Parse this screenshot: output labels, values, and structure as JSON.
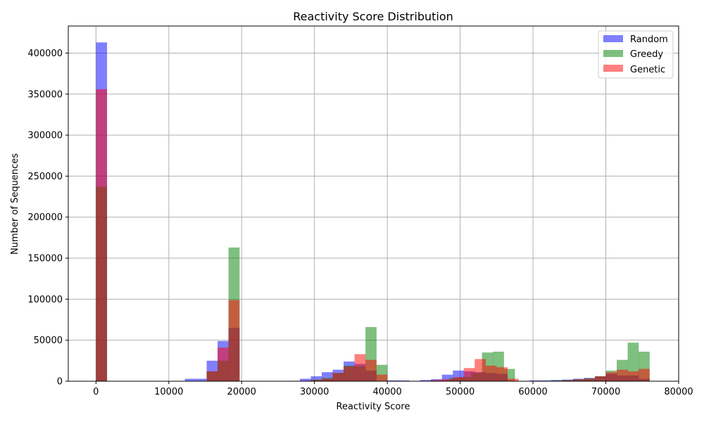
{
  "chart_data": {
    "type": "histogram",
    "title": "Reactivity Score Distribution",
    "xlabel": "Reactivity Score",
    "ylabel": "Number of Sequences",
    "xlim": [
      -3800,
      80000
    ],
    "ylim": [
      0,
      433000
    ],
    "xticks": [
      0,
      10000,
      20000,
      30000,
      40000,
      50000,
      60000,
      70000,
      80000
    ],
    "yticks": [
      0,
      50000,
      100000,
      150000,
      200000,
      250000,
      300000,
      350000,
      400000
    ],
    "grid": true,
    "legend_position": "top-right",
    "bin_width": 1520,
    "series": [
      {
        "name": "Random",
        "color": "#0000ff",
        "alpha": 0.5,
        "bins": [
          [
            0,
            413000
          ],
          [
            12200,
            3000
          ],
          [
            13700,
            3000
          ],
          [
            15200,
            25000
          ],
          [
            16700,
            49000
          ],
          [
            18200,
            65000
          ],
          [
            26500,
            500
          ],
          [
            28000,
            3000
          ],
          [
            29500,
            6000
          ],
          [
            31000,
            11000
          ],
          [
            32500,
            14000
          ],
          [
            34000,
            24000
          ],
          [
            35500,
            21000
          ],
          [
            37000,
            13000
          ],
          [
            40000,
            1000
          ],
          [
            41500,
            1000
          ],
          [
            44500,
            1500
          ],
          [
            46000,
            2500
          ],
          [
            47500,
            8000
          ],
          [
            49000,
            13000
          ],
          [
            50500,
            12000
          ],
          [
            52000,
            11000
          ],
          [
            53500,
            10000
          ],
          [
            55000,
            9000
          ],
          [
            59500,
            1000
          ],
          [
            61000,
            1000
          ],
          [
            62500,
            1500
          ],
          [
            64000,
            2000
          ],
          [
            65500,
            3000
          ],
          [
            67000,
            4000
          ],
          [
            68500,
            6000
          ],
          [
            70000,
            9000
          ],
          [
            71500,
            7000
          ],
          [
            73000,
            7000
          ],
          [
            74500,
            3000
          ]
        ]
      },
      {
        "name": "Greedy",
        "color": "#008000",
        "alpha": 0.5,
        "bins": [
          [
            0,
            237000
          ],
          [
            15200,
            12000
          ],
          [
            16700,
            25000
          ],
          [
            18200,
            163000
          ],
          [
            29500,
            2000
          ],
          [
            31000,
            4000
          ],
          [
            32500,
            10000
          ],
          [
            34000,
            19000
          ],
          [
            35500,
            18000
          ],
          [
            37000,
            66000
          ],
          [
            38500,
            20000
          ],
          [
            45500,
            500
          ],
          [
            47000,
            1000
          ],
          [
            48500,
            4000
          ],
          [
            50000,
            5000
          ],
          [
            51500,
            10000
          ],
          [
            53000,
            35000
          ],
          [
            54500,
            36000
          ],
          [
            56000,
            15000
          ],
          [
            62500,
            1000
          ],
          [
            64000,
            1500
          ],
          [
            65500,
            2500
          ],
          [
            67000,
            3500
          ],
          [
            68500,
            6000
          ],
          [
            70000,
            13000
          ],
          [
            71500,
            26000
          ],
          [
            73000,
            47000
          ],
          [
            74500,
            36000
          ]
        ]
      },
      {
        "name": "Genetic",
        "color": "#ff0000",
        "alpha": 0.5,
        "bins": [
          [
            0,
            356000
          ],
          [
            15200,
            12000
          ],
          [
            16700,
            41000
          ],
          [
            18200,
            99000
          ],
          [
            28000,
            500
          ],
          [
            29500,
            1500
          ],
          [
            31000,
            3000
          ],
          [
            32500,
            10000
          ],
          [
            34000,
            18000
          ],
          [
            35500,
            33000
          ],
          [
            37000,
            26000
          ],
          [
            38500,
            8000
          ],
          [
            44500,
            500
          ],
          [
            46000,
            1500
          ],
          [
            47500,
            2500
          ],
          [
            49000,
            5000
          ],
          [
            50500,
            16000
          ],
          [
            52000,
            27000
          ],
          [
            53500,
            19000
          ],
          [
            55000,
            17000
          ],
          [
            56500,
            3000
          ],
          [
            62500,
            500
          ],
          [
            64000,
            1000
          ],
          [
            65500,
            2000
          ],
          [
            67000,
            3000
          ],
          [
            68500,
            6000
          ],
          [
            70000,
            11000
          ],
          [
            71500,
            14000
          ],
          [
            73000,
            12000
          ],
          [
            74500,
            15000
          ]
        ]
      }
    ]
  }
}
